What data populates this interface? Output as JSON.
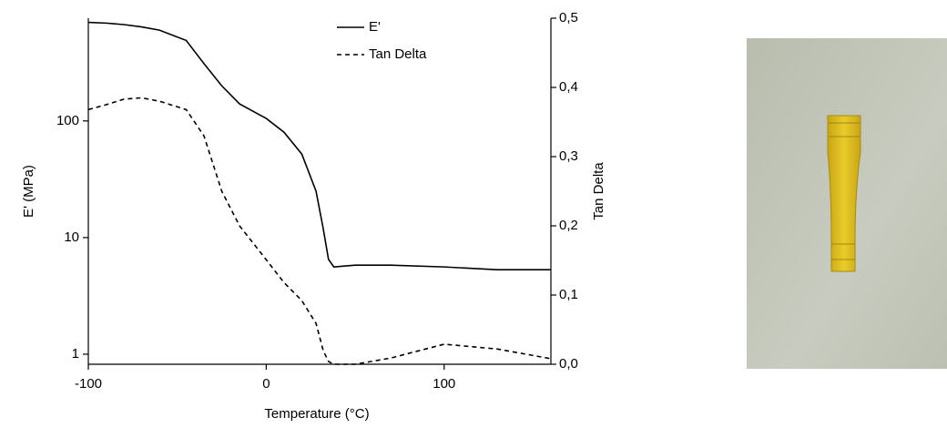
{
  "chart_data": {
    "type": "line",
    "x_label": "Temperature (°C)",
    "y_label": "E' (MPa)",
    "y2_label": "Tan Delta",
    "x": [
      -100,
      -90,
      -80,
      -70,
      -60,
      -45,
      -35,
      -25,
      -15,
      0,
      10,
      20,
      28,
      32,
      35,
      38,
      50,
      70,
      100,
      130,
      160
    ],
    "series": [
      {
        "name": "E'",
        "color": "#000000",
        "linestyle": "solid",
        "values": [
          700,
          690,
          670,
          640,
          600,
          490,
          310,
          200,
          140,
          105,
          80,
          52,
          25,
          12,
          6.5,
          5.6,
          5.8,
          5.8,
          5.6,
          5.3,
          5.3
        ]
      },
      {
        "name": "Tan Delta",
        "color": "#000000",
        "linestyle": "dashed",
        "axis": "y2",
        "values": [
          0.368,
          0.375,
          0.383,
          0.385,
          0.38,
          0.368,
          0.33,
          0.25,
          0.2,
          0.151,
          0.118,
          0.092,
          0.059,
          0.02,
          0.004,
          0.0,
          0.0,
          0.009,
          0.029,
          0.022,
          0.008
        ]
      }
    ],
    "xlim": [
      -100,
      160
    ],
    "xticks": [
      -100,
      0,
      100
    ],
    "ylim": [
      0.82,
      760
    ],
    "ylog": true,
    "yticks": [
      1,
      10,
      100
    ],
    "y2lim": [
      0,
      0.5
    ],
    "y2ticks": [
      {
        "value": 0,
        "label": "0,0"
      },
      {
        "value": 0.1,
        "label": "0,1"
      },
      {
        "value": 0.2,
        "label": "0,2"
      },
      {
        "value": 0.3,
        "label": "0,3"
      },
      {
        "value": 0.4,
        "label": "0,4"
      },
      {
        "value": 0.5,
        "label": "0,5"
      }
    ],
    "legend": "top"
  }
}
